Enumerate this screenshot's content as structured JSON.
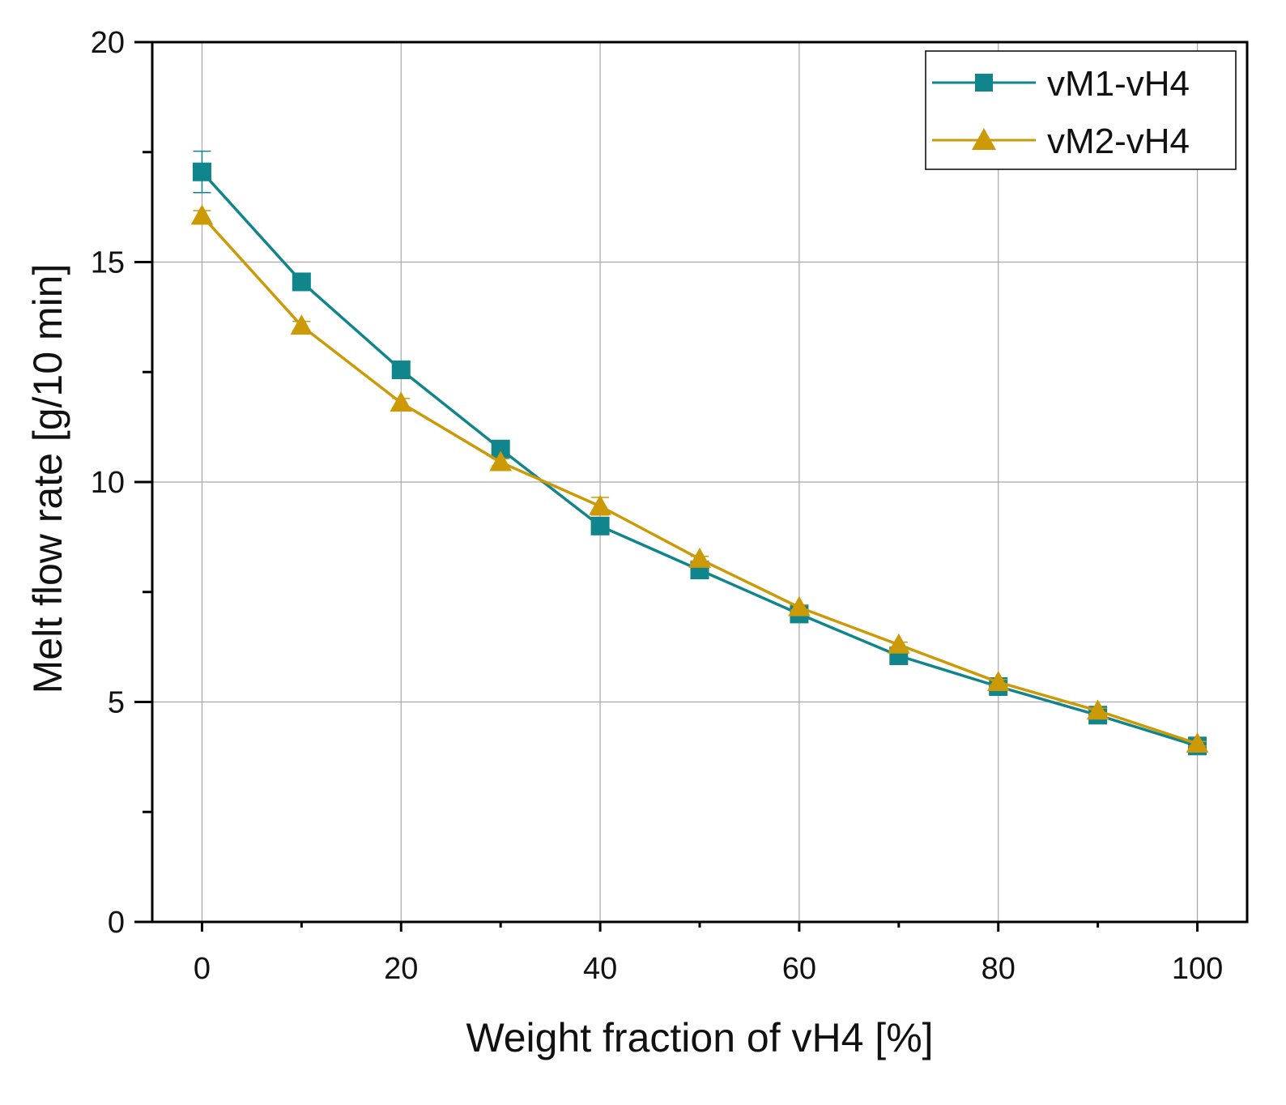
{
  "chart_data": {
    "type": "line",
    "title": "",
    "xlabel": "Weight fraction of vH4 [%]",
    "ylabel": "Melt flow rate [g/10 min]",
    "xlim": [
      -5,
      105
    ],
    "ylim": [
      0,
      20
    ],
    "x_ticks": [
      0,
      20,
      40,
      60,
      80,
      100
    ],
    "x_minor_ticks": [
      10,
      30,
      50,
      70,
      90
    ],
    "y_ticks": [
      0,
      5,
      10,
      15,
      20
    ],
    "y_minor_ticks": [
      2.5,
      7.5,
      12.5,
      17.5
    ],
    "grid": true,
    "legend_position": "top-right",
    "x": [
      0,
      10,
      20,
      30,
      40,
      50,
      60,
      70,
      80,
      90,
      100
    ],
    "series": [
      {
        "name": "vM1-vH4",
        "marker": "square",
        "color": "#10858c",
        "values": [
          17.05,
          14.55,
          12.55,
          10.75,
          9.0,
          8.0,
          7.0,
          6.05,
          5.35,
          4.7,
          4.0
        ],
        "errors": [
          0.47,
          0.08,
          0.08,
          0.08,
          0.1,
          0.06,
          0.06,
          0.06,
          0.06,
          0.06,
          0.05
        ]
      },
      {
        "name": "vM2-vH4",
        "marker": "triangle",
        "color": "#cc9a06",
        "values": [
          16.05,
          13.55,
          11.8,
          10.45,
          9.45,
          8.25,
          7.15,
          6.3,
          5.45,
          4.8,
          4.05
        ],
        "errors": [
          0.12,
          0.1,
          0.1,
          0.08,
          0.2,
          0.06,
          0.06,
          0.06,
          0.06,
          0.06,
          0.05
        ]
      }
    ]
  }
}
